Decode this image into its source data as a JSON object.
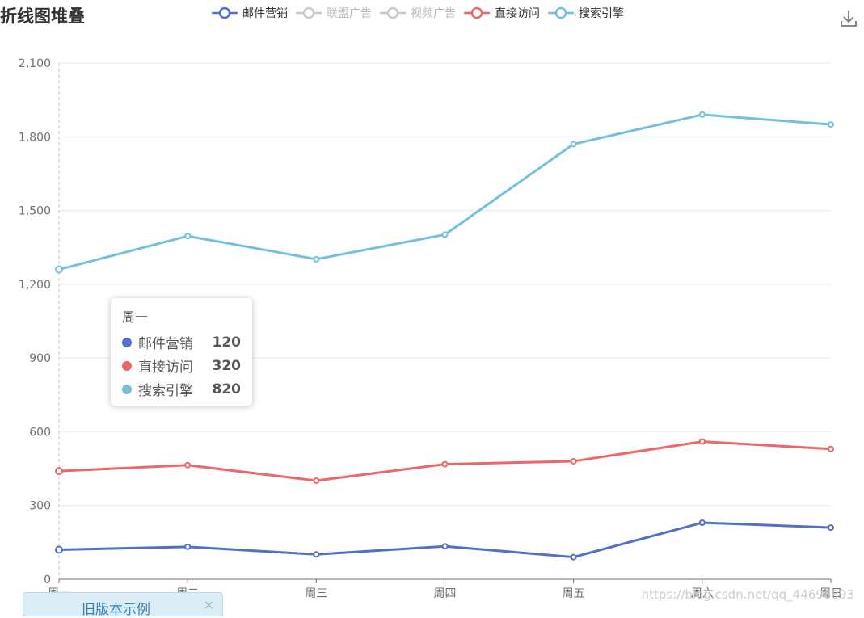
{
  "title": "折线图堆叠",
  "legend": [
    {
      "name": "邮件营销",
      "color": "#5470c6",
      "active": true
    },
    {
      "name": "联盟广告",
      "color": "#c8c8c8",
      "active": false
    },
    {
      "name": "视频广告",
      "color": "#c8c8c8",
      "active": false
    },
    {
      "name": "直接访问",
      "color": "#ee6666",
      "active": true
    },
    {
      "name": "搜索引擎",
      "color": "#73c0de",
      "active": true
    }
  ],
  "tooltip": {
    "title": "周一",
    "rows": [
      {
        "name": "邮件营销",
        "value": "120",
        "color": "#5470c6"
      },
      {
        "name": "直接访问",
        "value": "320",
        "color": "#ee6666"
      },
      {
        "name": "搜索引擎",
        "value": "820",
        "color": "#73c0de"
      }
    ]
  },
  "toolbox": {
    "download_icon": "download-icon"
  },
  "old_example_tab": {
    "label": "旧版本示例",
    "close": "×"
  },
  "watermark": "https://blog.csdn.net/qq_44698893",
  "chart_data": {
    "type": "line",
    "title": "折线图堆叠",
    "stacked": true,
    "categories": [
      "周一",
      "周二",
      "周三",
      "周四",
      "周五",
      "周六",
      "周日"
    ],
    "ylim": [
      0,
      2100
    ],
    "yticks": [
      0,
      300,
      600,
      900,
      1200,
      1500,
      1800,
      2100
    ],
    "ytick_labels": [
      "0",
      "300",
      "600",
      "900",
      "1,200",
      "1,500",
      "1,800",
      "2,100"
    ],
    "grid": true,
    "legend_position": "top",
    "series": [
      {
        "name": "邮件营销",
        "color": "#5470c6",
        "values": [
          120,
          132,
          101,
          134,
          90,
          230,
          210
        ]
      },
      {
        "name": "直接访问",
        "color": "#ee6666",
        "values": [
          440,
          464,
          401,
          468,
          480,
          560,
          530
        ]
      },
      {
        "name": "搜索引擎",
        "color": "#73c0de",
        "values": [
          1260,
          1396,
          1302,
          1402,
          1770,
          1890,
          1850
        ]
      }
    ]
  }
}
